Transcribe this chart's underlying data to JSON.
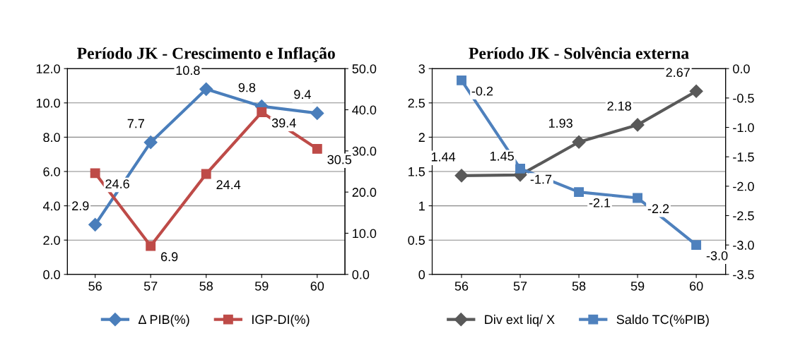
{
  "chart_data": [
    {
      "type": "line",
      "title": "Período JK - Crescimento e Inflação",
      "categories": [
        "56",
        "57",
        "58",
        "59",
        "60"
      ],
      "series": [
        {
          "name": "Δ PIB(%)",
          "color": "#4a7ebb",
          "marker": "diamond",
          "values": [
            2.9,
            7.7,
            10.8,
            9.8,
            9.4
          ],
          "value_labels": [
            "2.9",
            "7.7",
            "10.8",
            "9.8",
            "9.4"
          ]
        },
        {
          "name": "IGP-DI(%)",
          "color": "#be4b48",
          "marker": "square",
          "axis": "y2",
          "values": [
            24.6,
            6.9,
            24.4,
            39.4,
            30.5
          ],
          "value_labels": [
            "24.6",
            "6.9",
            "24.4",
            "39.4",
            "30.5"
          ]
        }
      ],
      "ylim": [
        0,
        12
      ],
      "yticks": [
        {
          "value": 0,
          "label": "0.0"
        },
        {
          "value": 2,
          "label": "2.0"
        },
        {
          "value": 4,
          "label": "4.0"
        },
        {
          "value": 6,
          "label": "6.0"
        },
        {
          "value": 8,
          "label": "8.0"
        },
        {
          "value": 10,
          "label": "10.0"
        },
        {
          "value": 12,
          "label": "12.0"
        }
      ],
      "y2lim": [
        0,
        50
      ],
      "y2ticks": [
        {
          "value": 0,
          "label": "0.0"
        },
        {
          "value": 10,
          "label": "10.0"
        },
        {
          "value": 20,
          "label": "20.0"
        },
        {
          "value": 30,
          "label": "30.0"
        },
        {
          "value": 40,
          "label": "40.0"
        },
        {
          "value": 50,
          "label": "50.0"
        }
      ],
      "grid": "y",
      "legend": "bottom",
      "data_labels": true
    },
    {
      "type": "line",
      "title": "Período JK - Solvência externa",
      "categories": [
        "56",
        "57",
        "58",
        "59",
        "60"
      ],
      "series": [
        {
          "name": "Div ext liq/ X",
          "color": "#595959",
          "marker": "diamond",
          "values": [
            1.44,
            1.45,
            1.93,
            2.18,
            2.67
          ],
          "value_labels": [
            "1.44",
            "1.45",
            "1.93",
            "2.18",
            "2.67"
          ]
        },
        {
          "name": "Saldo TC(%PIB)",
          "color": "#4f81bd",
          "marker": "square",
          "axis": "y2",
          "values": [
            -0.2,
            -1.7,
            -2.1,
            -2.2,
            -3.0
          ],
          "value_labels": [
            "-0.2",
            "-1.7",
            "-2.1",
            "-2.2",
            "-3.0"
          ]
        }
      ],
      "ylim": [
        0,
        3
      ],
      "yticks": [
        0,
        0.5,
        1,
        1.5,
        2,
        2.5,
        3
      ],
      "y2lim": [
        -3.5,
        0
      ],
      "y2ticks": [
        {
          "value": -3.5,
          "label": "-3.5"
        },
        {
          "value": -3,
          "label": "-3.0"
        },
        {
          "value": -2.5,
          "label": "-2.5"
        },
        {
          "value": -2,
          "label": "-2.0"
        },
        {
          "value": -1.5,
          "label": "-1.5"
        },
        {
          "value": -1,
          "label": "-1.0"
        },
        {
          "value": -0.5,
          "label": "-0.5"
        },
        {
          "value": 0,
          "label": "0.0"
        }
      ],
      "grid": "y",
      "legend": "bottom",
      "data_labels": true
    }
  ]
}
